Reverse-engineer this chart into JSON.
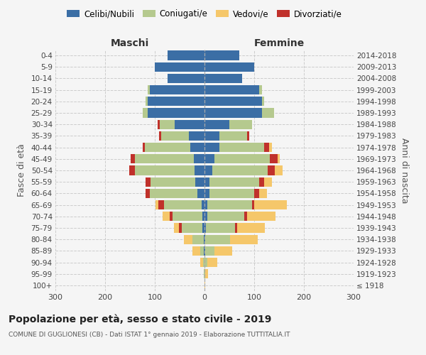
{
  "age_groups": [
    "100+",
    "95-99",
    "90-94",
    "85-89",
    "80-84",
    "75-79",
    "70-74",
    "65-69",
    "60-64",
    "55-59",
    "50-54",
    "45-49",
    "40-44",
    "35-39",
    "30-34",
    "25-29",
    "20-24",
    "15-19",
    "10-14",
    "5-9",
    "0-4"
  ],
  "birth_years": [
    "≤ 1918",
    "1919-1923",
    "1924-1928",
    "1929-1933",
    "1934-1938",
    "1939-1943",
    "1944-1948",
    "1949-1953",
    "1954-1958",
    "1959-1963",
    "1964-1968",
    "1969-1973",
    "1974-1978",
    "1979-1983",
    "1984-1988",
    "1989-1993",
    "1994-1998",
    "1999-2003",
    "2004-2008",
    "2009-2013",
    "2014-2018"
  ],
  "colors": {
    "celibi": "#3b6ea5",
    "coniugati": "#b5c98e",
    "vedovi": "#f5c76a",
    "divorziati": "#c0312b"
  },
  "maschi": {
    "celibi": [
      0,
      0,
      0,
      1,
      2,
      4,
      5,
      6,
      15,
      18,
      20,
      22,
      28,
      32,
      60,
      115,
      115,
      110,
      75,
      100,
      75
    ],
    "coniugati": [
      0,
      1,
      3,
      8,
      22,
      42,
      60,
      75,
      95,
      90,
      120,
      118,
      92,
      55,
      30,
      10,
      4,
      4,
      0,
      0,
      0
    ],
    "vedovi": [
      0,
      1,
      5,
      15,
      18,
      10,
      15,
      5,
      0,
      0,
      0,
      0,
      0,
      0,
      0,
      0,
      0,
      0,
      0,
      0,
      0
    ],
    "divorziati": [
      0,
      0,
      0,
      0,
      0,
      6,
      5,
      12,
      8,
      10,
      12,
      8,
      5,
      5,
      5,
      0,
      0,
      0,
      0,
      0,
      0
    ]
  },
  "femmine": {
    "celibi": [
      0,
      0,
      0,
      2,
      2,
      3,
      5,
      5,
      10,
      10,
      15,
      20,
      30,
      30,
      50,
      115,
      115,
      110,
      75,
      100,
      70
    ],
    "coniugati": [
      0,
      2,
      5,
      18,
      50,
      58,
      75,
      90,
      90,
      100,
      112,
      112,
      90,
      55,
      45,
      25,
      5,
      5,
      0,
      0,
      0
    ],
    "vedovi": [
      2,
      5,
      20,
      35,
      55,
      55,
      58,
      65,
      15,
      15,
      15,
      5,
      5,
      0,
      0,
      0,
      0,
      0,
      0,
      0,
      0
    ],
    "divorziati": [
      0,
      0,
      0,
      0,
      0,
      5,
      5,
      5,
      10,
      10,
      15,
      15,
      10,
      5,
      0,
      0,
      0,
      0,
      0,
      0,
      0
    ]
  },
  "title": "Popolazione per età, sesso e stato civile - 2019",
  "subtitle": "COMUNE DI GUGLIONESI (CB) - Dati ISTAT 1° gennaio 2019 - Elaborazione TUTTITALIA.IT",
  "ylabel_left": "Fasce di età",
  "ylabel_right": "Anni di nascita",
  "xlim": 300,
  "background": "#f5f5f5",
  "legend_labels": [
    "Celibi/Nubili",
    "Coniugati/e",
    "Vedovi/e",
    "Divorziati/e"
  ]
}
